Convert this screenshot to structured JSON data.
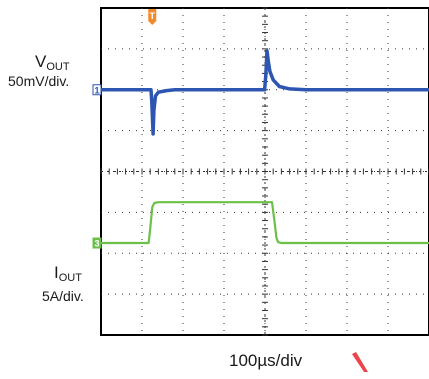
{
  "chart_data": {
    "type": "line",
    "grid": true,
    "xlabel": "100µs/div",
    "x_range_divisions": [
      0,
      8
    ],
    "y_range_divisions": [
      0,
      8
    ],
    "trigger_marker": "T",
    "series": [
      {
        "name": "VOUT",
        "name_main": "V",
        "name_sub": "OUT",
        "scale_label": "50mV/div.",
        "marker_label": "1",
        "color": "#2d55b2",
        "points": [
          [
            0.0,
            0.0
          ],
          [
            1.22,
            0.0
          ],
          [
            1.24,
            -0.3
          ],
          [
            1.27,
            -1.08
          ],
          [
            1.29,
            -0.5
          ],
          [
            1.33,
            -0.15
          ],
          [
            1.4,
            -0.06
          ],
          [
            1.6,
            -0.02
          ],
          [
            1.8,
            0.0
          ],
          [
            3.99,
            0.0
          ],
          [
            4.02,
            0.35
          ],
          [
            4.05,
            0.95
          ],
          [
            4.08,
            0.7
          ],
          [
            4.12,
            0.45
          ],
          [
            4.2,
            0.24
          ],
          [
            4.35,
            0.08
          ],
          [
            4.6,
            0.02
          ],
          [
            5.0,
            0.0
          ],
          [
            8.0,
            0.0
          ]
        ]
      },
      {
        "name": "IOUT",
        "name_main": "I",
        "name_sub": "OUT",
        "scale_label": "5A/div.",
        "marker_label": "3",
        "color": "#6cc04a",
        "points": [
          [
            0.0,
            0.0
          ],
          [
            1.16,
            0.0
          ],
          [
            1.2,
            0.35
          ],
          [
            1.25,
            0.88
          ],
          [
            1.3,
            0.98
          ],
          [
            1.4,
            1.0
          ],
          [
            4.17,
            1.0
          ],
          [
            4.23,
            0.55
          ],
          [
            4.28,
            0.12
          ],
          [
            4.32,
            0.02
          ],
          [
            4.4,
            0.0
          ],
          [
            8.0,
            0.0
          ]
        ]
      }
    ],
    "colors": {
      "trigger": "#f08a2c",
      "grid": "#333333",
      "frame": "#000000",
      "watermark": "#e8232a"
    }
  }
}
